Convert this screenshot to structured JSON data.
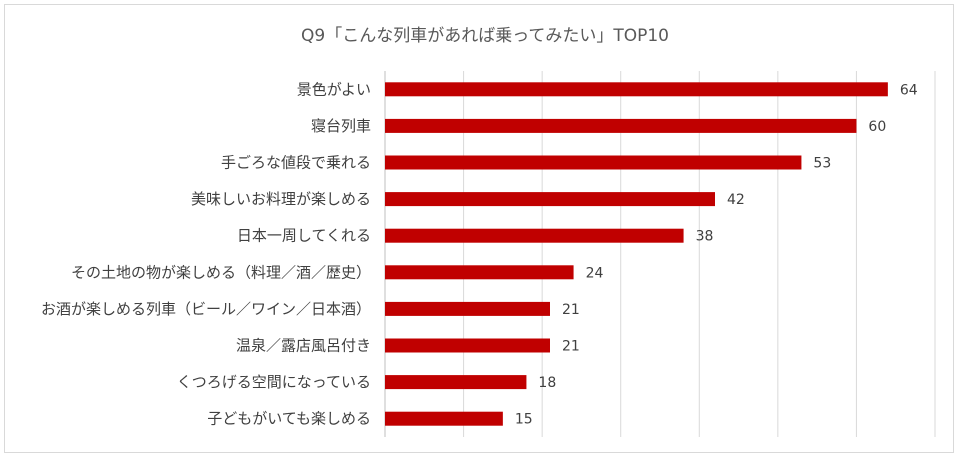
{
  "chart_data": {
    "type": "bar",
    "orientation": "horizontal",
    "title": "Q9「こんな列車があれば乗ってみたい」TOP10",
    "categories": [
      "景色がよい",
      "寝台列車",
      "手ごろな値段で乗れる",
      "美味しいお料理が楽しめる",
      "日本一周してくれる",
      "その土地の物が楽しめる（料理／酒／歴史）",
      "お酒が楽しめる列車（ビール／ワイン／日本酒）",
      "温泉／露店風呂付き",
      "くつろげる空間になっている",
      "子どもがいても楽しめる"
    ],
    "values": [
      64,
      60,
      53,
      42,
      38,
      24,
      21,
      21,
      18,
      15
    ],
    "xlim": [
      0,
      70
    ],
    "grid": true,
    "legend": false,
    "bar_color": "#c00000"
  }
}
